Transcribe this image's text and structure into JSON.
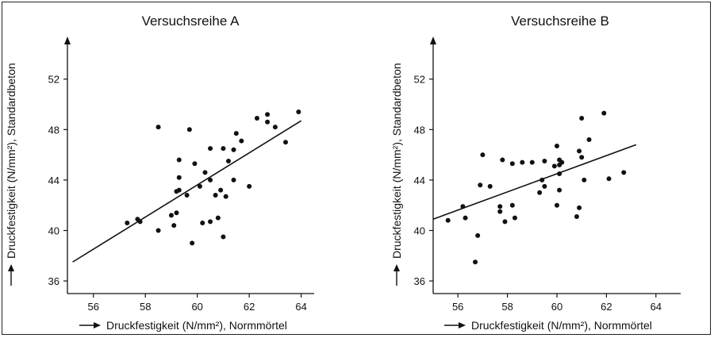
{
  "chart_data": [
    {
      "type": "scatter",
      "title": "Versuchsreihe A",
      "xlabel": "Druckfestigkeit (N/mm²), Normmörtel",
      "ylabel": "Druckfestigkeit (N/mm²), Standardbeton",
      "xlim": [
        55,
        64.5
      ],
      "ylim": [
        35,
        55
      ],
      "xticks": [
        56,
        58,
        60,
        62,
        64
      ],
      "yticks": [
        36,
        40,
        44,
        48,
        52
      ],
      "grid": false,
      "points": [
        [
          57.3,
          40.6
        ],
        [
          57.7,
          40.9
        ],
        [
          57.8,
          40.7
        ],
        [
          58.5,
          48.2
        ],
        [
          58.5,
          40.0
        ],
        [
          59.0,
          41.2
        ],
        [
          59.1,
          40.4
        ],
        [
          59.2,
          41.4
        ],
        [
          59.2,
          43.1
        ],
        [
          59.3,
          43.2
        ],
        [
          59.3,
          44.2
        ],
        [
          59.3,
          45.6
        ],
        [
          59.6,
          42.8
        ],
        [
          59.7,
          48.0
        ],
        [
          59.8,
          39.0
        ],
        [
          59.9,
          45.3
        ],
        [
          60.1,
          43.5
        ],
        [
          60.2,
          40.6
        ],
        [
          60.3,
          44.6
        ],
        [
          60.5,
          46.5
        ],
        [
          60.5,
          40.7
        ],
        [
          60.5,
          44.0
        ],
        [
          60.7,
          42.8
        ],
        [
          60.8,
          41.0
        ],
        [
          60.9,
          43.2
        ],
        [
          61.0,
          39.5
        ],
        [
          61.0,
          46.5
        ],
        [
          61.1,
          42.7
        ],
        [
          61.2,
          45.5
        ],
        [
          61.4,
          46.4
        ],
        [
          61.4,
          44.0
        ],
        [
          61.5,
          47.7
        ],
        [
          61.7,
          47.1
        ],
        [
          62.0,
          43.5
        ],
        [
          62.3,
          48.9
        ],
        [
          62.7,
          49.2
        ],
        [
          62.7,
          48.6
        ],
        [
          63.0,
          48.2
        ],
        [
          63.4,
          47.0
        ],
        [
          63.9,
          49.4
        ]
      ],
      "trendline": [
        [
          55.2,
          37.5
        ],
        [
          64.0,
          48.7
        ]
      ]
    },
    {
      "type": "scatter",
      "title": "Versuchsreihe B",
      "xlabel": "Druckfestigkeit (N/mm²), Normmörtel",
      "ylabel": "Druckfestigkeit (N/mm²), Standardbeton",
      "xlim": [
        55,
        65
      ],
      "ylim": [
        35,
        55
      ],
      "xticks": [
        56,
        58,
        60,
        62,
        64
      ],
      "yticks": [
        36,
        40,
        44,
        48,
        52
      ],
      "grid": false,
      "points": [
        [
          55.6,
          40.8
        ],
        [
          56.2,
          41.9
        ],
        [
          56.3,
          41.0
        ],
        [
          56.7,
          37.5
        ],
        [
          56.8,
          39.6
        ],
        [
          56.9,
          43.6
        ],
        [
          57.0,
          46.0
        ],
        [
          57.3,
          43.5
        ],
        [
          57.7,
          41.9
        ],
        [
          57.7,
          41.5
        ],
        [
          57.8,
          45.6
        ],
        [
          57.9,
          40.7
        ],
        [
          58.2,
          45.3
        ],
        [
          58.2,
          42.0
        ],
        [
          58.3,
          41.0
        ],
        [
          58.6,
          45.4
        ],
        [
          59.0,
          45.4
        ],
        [
          59.3,
          43.0
        ],
        [
          59.4,
          44.0
        ],
        [
          59.5,
          45.5
        ],
        [
          59.5,
          43.5
        ],
        [
          59.9,
          45.1
        ],
        [
          60.0,
          46.7
        ],
        [
          60.0,
          42.0
        ],
        [
          60.1,
          45.6
        ],
        [
          60.1,
          45.2
        ],
        [
          60.1,
          44.5
        ],
        [
          60.1,
          43.2
        ],
        [
          60.2,
          45.4
        ],
        [
          60.8,
          41.1
        ],
        [
          60.9,
          41.8
        ],
        [
          60.9,
          46.3
        ],
        [
          61.0,
          45.8
        ],
        [
          61.0,
          48.9
        ],
        [
          61.1,
          44.0
        ],
        [
          61.3,
          47.2
        ],
        [
          61.9,
          49.3
        ],
        [
          62.1,
          44.1
        ],
        [
          62.7,
          44.6
        ]
      ],
      "trendline": [
        [
          55.0,
          40.9
        ],
        [
          63.2,
          46.8
        ]
      ]
    }
  ]
}
